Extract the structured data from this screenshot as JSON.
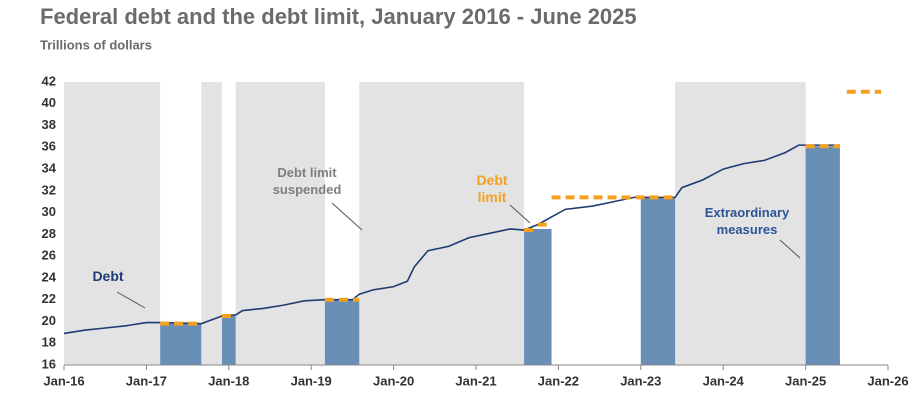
{
  "chart_data": {
    "type": "line",
    "title": "Federal debt and the debt limit, January 2016 - June 2025",
    "subtitle": "Trillions of dollars",
    "xlim": [
      "2016-01",
      "2026-01"
    ],
    "xticks": [
      {
        "value": "2016-01",
        "label": "Jan-16"
      },
      {
        "value": "2017-01",
        "label": "Jan-17"
      },
      {
        "value": "2018-01",
        "label": "Jan-18"
      },
      {
        "value": "2019-01",
        "label": "Jan-19"
      },
      {
        "value": "2020-01",
        "label": "Jan-20"
      },
      {
        "value": "2021-01",
        "label": "Jan-21"
      },
      {
        "value": "2022-01",
        "label": "Jan-22"
      },
      {
        "value": "2023-01",
        "label": "Jan-23"
      },
      {
        "value": "2024-01",
        "label": "Jan-24"
      },
      {
        "value": "2025-01",
        "label": "Jan-25"
      },
      {
        "value": "2026-01",
        "label": "Jan-26"
      }
    ],
    "ylim": [
      16,
      42
    ],
    "yticks": [
      16,
      18,
      20,
      22,
      24,
      26,
      28,
      30,
      32,
      34,
      36,
      38,
      40,
      42
    ],
    "grid": false,
    "series": [
      {
        "name": "Debt",
        "color": "#1f3b73",
        "x": [
          "2016-01",
          "2016-04",
          "2016-07",
          "2016-10",
          "2017-01",
          "2017-03",
          "2017-09",
          "2017-12",
          "2018-02",
          "2018-03",
          "2018-06",
          "2018-09",
          "2018-12",
          "2019-03",
          "2019-07",
          "2019-08",
          "2019-10",
          "2020-01",
          "2020-03",
          "2020-04",
          "2020-06",
          "2020-09",
          "2020-12",
          "2021-03",
          "2021-06",
          "2021-08",
          "2021-10",
          "2021-12",
          "2022-02",
          "2022-06",
          "2022-09",
          "2022-12",
          "2023-01",
          "2023-06",
          "2023-07",
          "2023-10",
          "2024-01",
          "2024-04",
          "2024-07",
          "2024-10",
          "2024-12",
          "2025-01",
          "2025-06"
        ],
        "values": [
          18.9,
          19.2,
          19.4,
          19.6,
          19.9,
          19.9,
          19.8,
          20.5,
          20.6,
          21.0,
          21.2,
          21.5,
          21.9,
          22.0,
          22.0,
          22.5,
          22.9,
          23.2,
          23.7,
          25.0,
          26.5,
          26.9,
          27.7,
          28.1,
          28.5,
          28.4,
          28.9,
          29.6,
          30.3,
          30.6,
          31.0,
          31.4,
          31.4,
          31.4,
          32.3,
          33.0,
          34.0,
          34.5,
          34.8,
          35.5,
          36.2,
          36.2,
          36.2
        ]
      }
    ],
    "suspended": {
      "name": "Debt limit suspended",
      "color": "#e3e3e3",
      "periods": [
        [
          "2016-01",
          "2017-03"
        ],
        [
          "2017-09",
          "2017-12"
        ],
        [
          "2018-02",
          "2019-03"
        ],
        [
          "2019-08",
          "2021-08"
        ],
        [
          "2023-06",
          "2025-01"
        ]
      ]
    },
    "extraordinary_measures": {
      "name": "Extraordinary measures",
      "color": "#6a8fb7",
      "periods": [
        {
          "start": "2017-03",
          "end": "2017-09",
          "value": 19.8
        },
        {
          "start": "2017-12",
          "end": "2018-02",
          "value": 20.5
        },
        {
          "start": "2019-03",
          "end": "2019-08",
          "value": 22.0
        },
        {
          "start": "2021-08",
          "end": "2021-12",
          "value": 28.5
        },
        {
          "start": "2023-01",
          "end": "2023-06",
          "value": 31.4
        },
        {
          "start": "2025-01",
          "end": "2025-06",
          "value": 36.1
        }
      ]
    },
    "debt_limit": {
      "name": "Debt limit",
      "color": "#f5a021",
      "segments": [
        {
          "start": "2017-03",
          "end": "2017-09",
          "value": 19.8
        },
        {
          "start": "2017-12",
          "end": "2018-02",
          "value": 20.5
        },
        {
          "start": "2019-03",
          "end": "2019-08",
          "value": 22.0
        },
        {
          "start": "2021-08",
          "end": "2021-10",
          "value": 28.4
        },
        {
          "start": "2021-10",
          "end": "2021-12",
          "value": 28.9
        },
        {
          "start": "2021-12",
          "end": "2023-06",
          "value": 31.4
        },
        {
          "start": "2025-01",
          "end": "2025-06",
          "value": 36.1
        },
        {
          "start": "2025-07",
          "end": "2025-12",
          "value": 41.1
        }
      ]
    }
  }
}
